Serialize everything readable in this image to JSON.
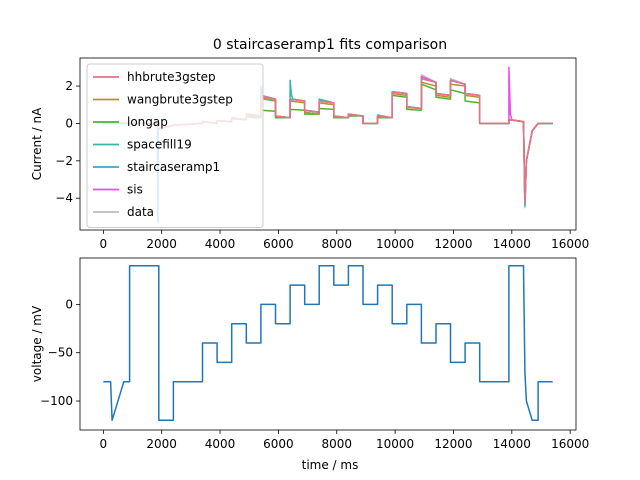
{
  "chart_data": [
    {
      "type": "line",
      "title": "0 staircaseramp1 fits comparison",
      "xlabel": "",
      "ylabel": "Current / nA",
      "xlim": [
        -800,
        16200
      ],
      "ylim": [
        -5.7,
        3.5
      ],
      "xticks": [
        0,
        2000,
        4000,
        6000,
        8000,
        10000,
        12000,
        14000,
        16000
      ],
      "xtick_labels": [
        "0",
        "2000",
        "4000",
        "6000",
        "8000",
        "10000",
        "12000",
        "14000",
        "16000"
      ],
      "yticks": [
        -4,
        -2,
        0,
        2
      ],
      "ytick_labels": [
        "−4",
        "−2",
        "0",
        "2"
      ],
      "legend_position": "upper-left",
      "grid": false,
      "series": [
        {
          "name": "hhbrute3gstep",
          "color": "#e8718c",
          "x": [
            0,
            1850,
            1880,
            2400,
            3400,
            3400,
            3900,
            3900,
            4400,
            4400,
            4900,
            4900,
            5400,
            5400,
            5900,
            5900,
            6400,
            6400,
            6900,
            6900,
            7400,
            7400,
            7900,
            7900,
            8400,
            8400,
            8900,
            8900,
            9400,
            9400,
            9900,
            9900,
            10400,
            10400,
            10900,
            10900,
            11400,
            11400,
            11900,
            11900,
            12400,
            12400,
            12900,
            12900,
            13900,
            13900,
            14400,
            14450,
            14500,
            14700,
            14900,
            15400
          ],
          "y": [
            0,
            0,
            -0.3,
            -0.1,
            0,
            0.1,
            0,
            0.15,
            0.1,
            0.3,
            0.2,
            0.5,
            0.4,
            1.5,
            1.3,
            0.4,
            0.3,
            1.3,
            1.2,
            0.7,
            0.6,
            1.2,
            1.1,
            0.4,
            0.3,
            0.5,
            0.4,
            0,
            0,
            0.4,
            0.3,
            1.7,
            1.6,
            0.9,
            0.8,
            2.4,
            2.2,
            1.6,
            1.5,
            2.3,
            2.1,
            1.6,
            1.5,
            0,
            0,
            0.2,
            0.1,
            -4.3,
            -2,
            -0.4,
            0,
            0
          ]
        },
        {
          "name": "wangbrute3gstep",
          "color": "#b49134",
          "x": [
            0,
            1850,
            1880,
            2400,
            3400,
            3400,
            3900,
            3900,
            4400,
            4400,
            4900,
            4900,
            5400,
            5400,
            5900,
            5900,
            6400,
            6400,
            6900,
            6900,
            7400,
            7400,
            7900,
            7900,
            8400,
            8400,
            8900,
            8900,
            9400,
            9400,
            9900,
            9900,
            10400,
            10400,
            10900,
            10900,
            11400,
            11400,
            11900,
            11900,
            12400,
            12400,
            12900,
            12900,
            13900,
            13900,
            14400,
            14450,
            14500,
            14700,
            14900,
            15400
          ],
          "y": [
            0,
            0,
            -0.3,
            -0.1,
            0,
            0.1,
            0,
            0.15,
            0.1,
            0.3,
            0.2,
            0.4,
            0.35,
            1.4,
            1.2,
            0.4,
            0.3,
            1.2,
            1.1,
            0.6,
            0.5,
            1.1,
            1.0,
            0.35,
            0.3,
            0.45,
            0.4,
            0,
            0,
            0.35,
            0.3,
            1.6,
            1.5,
            0.85,
            0.8,
            2.2,
            2.0,
            1.5,
            1.4,
            2.1,
            2.0,
            1.5,
            1.4,
            0,
            0,
            0.2,
            0.1,
            -4.1,
            -2,
            -0.4,
            0,
            0
          ]
        },
        {
          "name": "longap",
          "color": "#4fb22f",
          "x": [
            0,
            1850,
            1880,
            2400,
            3400,
            3400,
            3900,
            3900,
            4400,
            4400,
            4900,
            4900,
            5400,
            5400,
            5900,
            5900,
            6400,
            6400,
            6900,
            6900,
            7400,
            7400,
            7900,
            7900,
            8400,
            8400,
            8900,
            8900,
            9400,
            9400,
            9900,
            9900,
            10400,
            10400,
            10900,
            10900,
            11400,
            11400,
            11900,
            11900,
            12400,
            12400,
            12900,
            12900,
            13900,
            13900,
            14400,
            14450,
            14500,
            14700,
            14900,
            15400
          ],
          "y": [
            0,
            0,
            -0.3,
            -0.1,
            0,
            0.1,
            0,
            0.15,
            0.1,
            0.25,
            0.2,
            0.35,
            0.3,
            0.7,
            0.65,
            0.3,
            0.3,
            0.75,
            0.7,
            0.5,
            0.5,
            0.8,
            0.75,
            0.3,
            0.3,
            0.4,
            0.4,
            0,
            0,
            0.3,
            0.3,
            1.5,
            1.4,
            0.75,
            0.7,
            2.1,
            1.8,
            1.4,
            1.3,
            1.8,
            1.6,
            1.2,
            1.1,
            0,
            0,
            0.2,
            0.1,
            -4.0,
            -2,
            -0.4,
            0,
            0
          ]
        },
        {
          "name": "spacefill19",
          "color": "#2fbba4",
          "x": [
            0,
            1850,
            1880,
            2400,
            3400,
            3400,
            3900,
            3900,
            4400,
            4400,
            4900,
            4900,
            5400,
            5400,
            5450,
            5500,
            5900,
            5900,
            6400,
            6400,
            6450,
            6500,
            6900,
            6900,
            7400,
            7400,
            7900,
            7900,
            8400,
            8400,
            8900,
            8900,
            9400,
            9400,
            9900,
            9900,
            10400,
            10400,
            10900,
            10900,
            11400,
            11400,
            11900,
            11900,
            12400,
            12400,
            12900,
            12900,
            13900,
            13900,
            14400,
            14450,
            14500,
            14700,
            14900,
            15400
          ],
          "y": [
            0,
            0,
            -0.3,
            -0.1,
            0,
            0.1,
            0,
            0.15,
            0.1,
            0.3,
            0.2,
            0.5,
            0.4,
            2.0,
            1.5,
            1.3,
            1.2,
            0.4,
            0.3,
            2.3,
            1.5,
            1.3,
            1.2,
            0.7,
            0.6,
            1.3,
            1.1,
            0.4,
            0.3,
            0.5,
            0.4,
            0,
            0,
            0.45,
            0.3,
            1.7,
            1.6,
            0.9,
            0.8,
            2.4,
            2.2,
            1.6,
            1.5,
            2.3,
            2.1,
            1.6,
            1.5,
            0,
            0,
            0.2,
            0.1,
            -4.4,
            -2,
            -0.4,
            0,
            0
          ]
        },
        {
          "name": "staircaseramp1",
          "color": "#3ba3d0",
          "x": [
            0,
            1850,
            1870,
            1880,
            2400,
            3400,
            3400,
            3900,
            3900,
            4400,
            4400,
            4900,
            4900,
            5400,
            5400,
            5900,
            5900,
            6400,
            6400,
            6900,
            6900,
            7400,
            7400,
            7900,
            7900,
            8400,
            8400,
            8900,
            8900,
            9400,
            9400,
            9900,
            9900,
            10400,
            10400,
            10900,
            10900,
            11400,
            11400,
            11900,
            11900,
            12400,
            12400,
            12900,
            12900,
            13900,
            13900,
            14400,
            14450,
            14500,
            14700,
            14900,
            15400
          ],
          "y": [
            0,
            0,
            -5.3,
            -0.3,
            -0.1,
            0,
            0.1,
            0,
            0.15,
            0.1,
            0.3,
            0.2,
            0.5,
            0.4,
            1.5,
            1.3,
            0.4,
            0.3,
            1.3,
            1.2,
            0.7,
            0.6,
            1.2,
            1.1,
            0.4,
            0.3,
            0.5,
            0.4,
            0,
            0,
            0.4,
            0.3,
            1.7,
            1.6,
            0.9,
            0.8,
            2.4,
            2.2,
            1.6,
            1.5,
            2.3,
            2.1,
            1.6,
            1.5,
            0,
            0,
            0.2,
            0.1,
            -4.4,
            -2,
            -0.4,
            0,
            0
          ]
        },
        {
          "name": "sis",
          "color": "#e94ee8",
          "x": [
            0,
            1850,
            1880,
            2400,
            3400,
            3400,
            3900,
            3900,
            4400,
            4400,
            4900,
            4900,
            5400,
            5400,
            5900,
            5900,
            6400,
            6400,
            6900,
            6900,
            7400,
            7400,
            7900,
            7900,
            8400,
            8400,
            8900,
            8900,
            9400,
            9400,
            9900,
            9900,
            10400,
            10400,
            10900,
            10900,
            11400,
            11400,
            11900,
            11900,
            12400,
            12400,
            12900,
            12900,
            13900,
            13900,
            13950,
            14000,
            14400,
            14450,
            14500,
            14700,
            14900,
            15400
          ],
          "y": [
            0,
            0,
            -0.3,
            -0.1,
            0,
            0.1,
            0,
            0.15,
            0.1,
            0.3,
            0.2,
            0.5,
            0.4,
            1.5,
            1.3,
            0.4,
            0.3,
            1.3,
            1.2,
            0.7,
            0.6,
            1.2,
            1.1,
            0.4,
            0.3,
            0.5,
            0.4,
            0,
            0,
            0.4,
            0.3,
            1.7,
            1.6,
            0.9,
            0.8,
            2.5,
            2.2,
            1.6,
            1.5,
            2.3,
            2.1,
            1.6,
            1.5,
            0,
            0,
            3.0,
            0.5,
            0.2,
            0.1,
            -4.3,
            -2,
            -0.4,
            0,
            0
          ]
        },
        {
          "name": "data",
          "color": "#bdbdbd",
          "x": [
            0,
            900,
            1850,
            1880,
            2400,
            3400,
            3400,
            3900,
            3900,
            4400,
            4400,
            4900,
            4900,
            5400,
            5400,
            5900,
            5900,
            6400,
            6400,
            6900,
            6900,
            7400,
            7400,
            7900,
            7900,
            8400,
            8400,
            8900,
            8900,
            9400,
            9400,
            9900,
            9900,
            10400,
            10400,
            10900,
            10900,
            11400,
            11400,
            11900,
            11900,
            12400,
            12400,
            12900,
            12900,
            13900,
            13900,
            14400,
            14450,
            14500,
            14700,
            14900,
            15400
          ],
          "y": [
            0,
            0.05,
            0,
            -0.3,
            -0.1,
            0,
            0.1,
            0,
            0.15,
            0.1,
            0.3,
            0.2,
            0.5,
            0.4,
            1.4,
            1.3,
            0.4,
            0.3,
            1.3,
            1.2,
            0.7,
            0.6,
            1.2,
            1.1,
            0.4,
            0.3,
            0.5,
            0.4,
            0,
            0,
            0.4,
            0.3,
            1.7,
            1.6,
            0.9,
            0.8,
            2.6,
            2.2,
            1.6,
            1.5,
            2.4,
            2.1,
            1.6,
            1.5,
            0,
            0,
            0.2,
            0.1,
            -4.5,
            -2,
            -0.4,
            0,
            0
          ]
        }
      ]
    },
    {
      "type": "line",
      "title": "",
      "xlabel": "time / ms",
      "ylabel": "voltage / mV",
      "xlim": [
        -800,
        16200
      ],
      "ylim": [
        -130,
        48
      ],
      "xticks": [
        0,
        2000,
        4000,
        6000,
        8000,
        10000,
        12000,
        14000,
        16000
      ],
      "xtick_labels": [
        "0",
        "2000",
        "4000",
        "6000",
        "8000",
        "10000",
        "12000",
        "14000",
        "16000"
      ],
      "yticks": [
        -100,
        -50,
        0
      ],
      "ytick_labels": [
        "−100",
        "−50",
        "0"
      ],
      "grid": false,
      "series": [
        {
          "name": "",
          "color": "#1f77b4",
          "x": [
            0,
            250,
            300,
            700,
            900,
            900,
            1900,
            1900,
            2400,
            2400,
            3400,
            3400,
            3900,
            3900,
            4400,
            4400,
            4900,
            4900,
            5400,
            5400,
            5900,
            5900,
            6400,
            6400,
            6900,
            6900,
            7400,
            7400,
            7900,
            7900,
            8400,
            8400,
            8900,
            8900,
            9400,
            9400,
            9900,
            9900,
            10400,
            10400,
            10900,
            10900,
            11400,
            11400,
            11900,
            11900,
            12400,
            12400,
            12900,
            12900,
            13900,
            13900,
            14400,
            14450,
            14500,
            14700,
            14900,
            14900,
            15400
          ],
          "y": [
            -80,
            -80,
            -120,
            -80,
            -80,
            40,
            40,
            -120,
            -120,
            -80,
            -80,
            -40,
            -40,
            -60,
            -60,
            -20,
            -20,
            -40,
            -40,
            0,
            0,
            -20,
            -20,
            20,
            20,
            0,
            0,
            40,
            40,
            20,
            20,
            40,
            40,
            0,
            0,
            20,
            20,
            -20,
            -20,
            0,
            0,
            -40,
            -40,
            -20,
            -20,
            -60,
            -60,
            -40,
            -40,
            -80,
            -80,
            40,
            40,
            -70,
            -100,
            -120,
            -120,
            -80,
            -80
          ]
        }
      ]
    }
  ]
}
